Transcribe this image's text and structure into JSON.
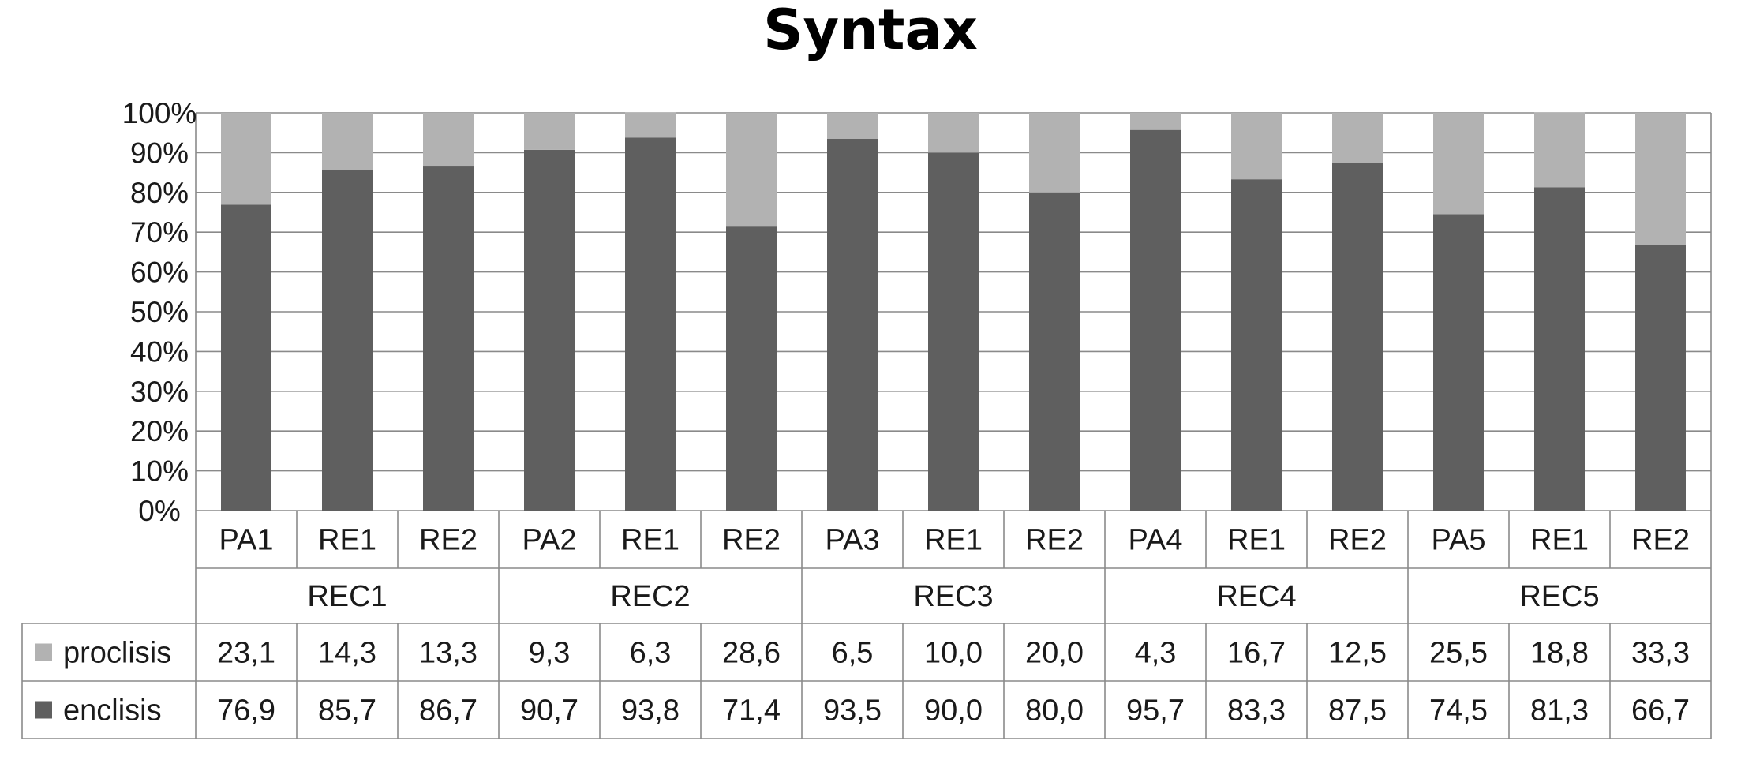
{
  "chart_data": {
    "type": "bar",
    "stacked": true,
    "percent_stacked": true,
    "title": "Syntax",
    "yticks": [
      "0%",
      "10%",
      "20%",
      "30%",
      "40%",
      "50%",
      "60%",
      "70%",
      "80%",
      "90%",
      "100%"
    ],
    "ylim": [
      0,
      100
    ],
    "grid": true,
    "categories": [
      "PA1",
      "RE1",
      "RE2",
      "PA2",
      "RE1",
      "RE2",
      "PA3",
      "RE1",
      "RE2",
      "PA4",
      "RE1",
      "RE2",
      "PA5",
      "RE1",
      "RE2"
    ],
    "groups": [
      "REC1",
      "REC2",
      "REC3",
      "REC4",
      "REC5"
    ],
    "group_size": 3,
    "legend_position": "data-table",
    "series": [
      {
        "name": "proclisis",
        "color": "#b2b2b2",
        "values": [
          23.1,
          14.3,
          13.3,
          9.3,
          6.3,
          28.6,
          6.5,
          10.0,
          20.0,
          4.3,
          16.7,
          12.5,
          25.5,
          18.8,
          33.3
        ],
        "labels": [
          "23,1",
          "14,3",
          "13,3",
          "9,3",
          "6,3",
          "28,6",
          "6,5",
          "10,0",
          "20,0",
          "4,3",
          "16,7",
          "12,5",
          "25,5",
          "18,8",
          "33,3"
        ]
      },
      {
        "name": "enclisis",
        "color": "#5f5f5f",
        "values": [
          76.9,
          85.7,
          86.7,
          90.7,
          93.8,
          71.4,
          93.5,
          90.0,
          80.0,
          95.7,
          83.3,
          87.5,
          74.5,
          81.3,
          66.7
        ],
        "labels": [
          "76,9",
          "85,7",
          "86,7",
          "90,7",
          "93,8",
          "71,4",
          "93,5",
          "90,0",
          "80,0",
          "95,7",
          "83,3",
          "87,5",
          "74,5",
          "81,3",
          "66,7"
        ]
      }
    ]
  }
}
